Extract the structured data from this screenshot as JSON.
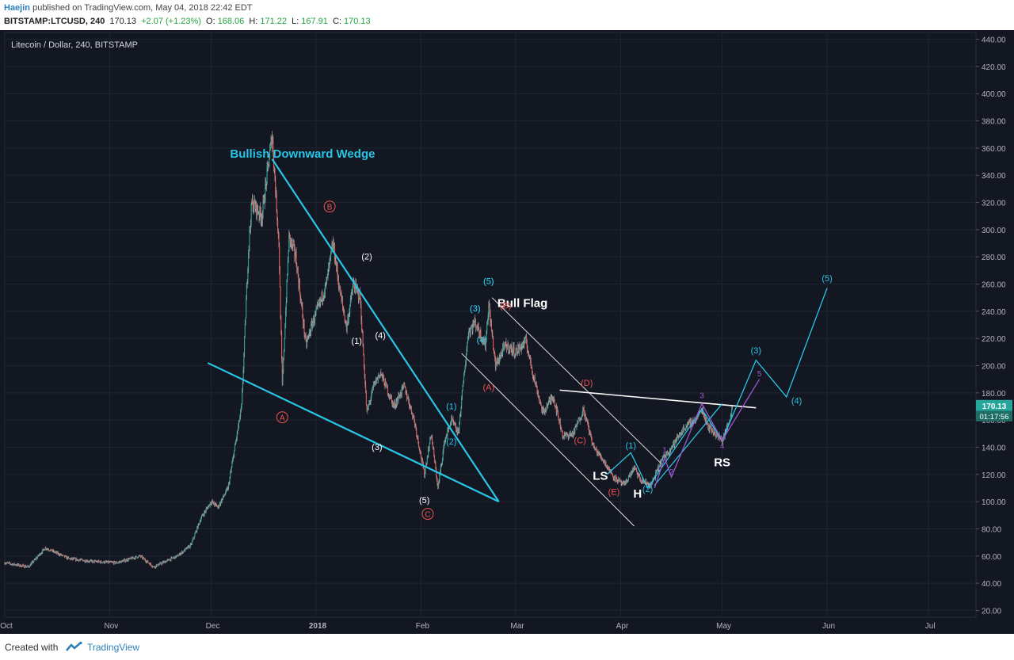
{
  "header": {
    "author": "Haejin",
    "published_text": "published on TradingView.com, May 04, 2018 22:42 EDT",
    "symbol": "BITSTAMP:LTCUSD, 240",
    "last": "170.13",
    "change": "+2.07 (+1.23%)",
    "o_label": "O:",
    "o_value": "168.06",
    "h_label": "H:",
    "h_value": "171.22",
    "l_label": "L:",
    "l_value": "167.91",
    "c_label": "C:",
    "c_value": "170.13"
  },
  "footer": {
    "created_label": "Created with",
    "brand": "TradingView"
  },
  "chart_data": {
    "type": "candlestick",
    "title": "Litecoin / Dollar, 240, BITSTAMP",
    "x_tick_labels": [
      "Oct",
      "Nov",
      "Dec",
      "2018",
      "Feb",
      "Mar",
      "Apr",
      "May",
      "Jun",
      "Jul"
    ],
    "x_tick_dates": [
      "2017-10-01",
      "2017-11-01",
      "2017-12-01",
      "2018-01-01",
      "2018-02-01",
      "2018-03-01",
      "2018-04-01",
      "2018-05-01",
      "2018-06-01",
      "2018-07-01"
    ],
    "xlim": [
      "2017-10-01",
      "2018-07-15"
    ],
    "ylim": [
      15,
      445
    ],
    "y_tick_labels": [
      "20.00",
      "40.00",
      "60.00",
      "80.00",
      "100.00",
      "120.00",
      "140.00",
      "160.00",
      "180.00",
      "200.00",
      "220.00",
      "240.00",
      "260.00",
      "280.00",
      "300.00",
      "320.00",
      "340.00",
      "360.00",
      "380.00",
      "400.00",
      "420.00",
      "440.00"
    ],
    "y_ticks": [
      20,
      40,
      60,
      80,
      100,
      120,
      140,
      160,
      180,
      200,
      220,
      240,
      260,
      280,
      300,
      320,
      340,
      360,
      380,
      400,
      420,
      440
    ],
    "last_price_label": "170.13",
    "last_price": 170.13,
    "countdown_label": "01:17:56",
    "price_path": [
      [
        "2017-10-01",
        55
      ],
      [
        "2017-10-08",
        52
      ],
      [
        "2017-10-13",
        66
      ],
      [
        "2017-10-20",
        58
      ],
      [
        "2017-10-27",
        56
      ],
      [
        "2017-11-03",
        55
      ],
      [
        "2017-11-10",
        60
      ],
      [
        "2017-11-14",
        52
      ],
      [
        "2017-11-21",
        60
      ],
      [
        "2017-11-25",
        68
      ],
      [
        "2017-11-28",
        88
      ],
      [
        "2017-12-01",
        100
      ],
      [
        "2017-12-03",
        96
      ],
      [
        "2017-12-06",
        110
      ],
      [
        "2017-12-08",
        140
      ],
      [
        "2017-12-10",
        170
      ],
      [
        "2017-12-12",
        285
      ],
      [
        "2017-12-13",
        320
      ],
      [
        "2017-12-16",
        310
      ],
      [
        "2017-12-19",
        370
      ],
      [
        "2017-12-21",
        290
      ],
      [
        "2017-12-22",
        185
      ],
      [
        "2017-12-24",
        295
      ],
      [
        "2017-12-26",
        280
      ],
      [
        "2017-12-29",
        215
      ],
      [
        "2017-12-31",
        232
      ],
      [
        "2018-01-02",
        245
      ],
      [
        "2018-01-04",
        260
      ],
      [
        "2018-01-06",
        290
      ],
      [
        "2018-01-08",
        255
      ],
      [
        "2018-01-10",
        228
      ],
      [
        "2018-01-12",
        260
      ],
      [
        "2018-01-14",
        250
      ],
      [
        "2018-01-16",
        165
      ],
      [
        "2018-01-18",
        185
      ],
      [
        "2018-01-20",
        195
      ],
      [
        "2018-01-24",
        170
      ],
      [
        "2018-01-27",
        185
      ],
      [
        "2018-01-30",
        160
      ],
      [
        "2018-02-02",
        120
      ],
      [
        "2018-02-04",
        150
      ],
      [
        "2018-02-06",
        110
      ],
      [
        "2018-02-08",
        145
      ],
      [
        "2018-02-10",
        160
      ],
      [
        "2018-02-12",
        150
      ],
      [
        "2018-02-14",
        200
      ],
      [
        "2018-02-15",
        225
      ],
      [
        "2018-02-17",
        232
      ],
      [
        "2018-02-20",
        215
      ],
      [
        "2018-02-21",
        245
      ],
      [
        "2018-02-23",
        200
      ],
      [
        "2018-02-26",
        215
      ],
      [
        "2018-03-01",
        210
      ],
      [
        "2018-03-04",
        218
      ],
      [
        "2018-03-06",
        195
      ],
      [
        "2018-03-09",
        165
      ],
      [
        "2018-03-12",
        178
      ],
      [
        "2018-03-15",
        148
      ],
      [
        "2018-03-18",
        150
      ],
      [
        "2018-03-21",
        168
      ],
      [
        "2018-03-24",
        140
      ],
      [
        "2018-03-27",
        130
      ],
      [
        "2018-03-30",
        118
      ],
      [
        "2018-04-02",
        112
      ],
      [
        "2018-04-05",
        125
      ],
      [
        "2018-04-07",
        115
      ],
      [
        "2018-04-10",
        112
      ],
      [
        "2018-04-13",
        130
      ],
      [
        "2018-04-16",
        140
      ],
      [
        "2018-04-20",
        155
      ],
      [
        "2018-04-23",
        160
      ],
      [
        "2018-04-25",
        168
      ],
      [
        "2018-04-27",
        155
      ],
      [
        "2018-04-29",
        150
      ],
      [
        "2018-05-01",
        145
      ],
      [
        "2018-05-03",
        158
      ],
      [
        "2018-05-04",
        170
      ]
    ],
    "annotations": {
      "titles": [
        "Bullish Downward Wedge",
        "Bull Flag"
      ],
      "pattern_labels": [
        "LS",
        "H",
        "RS"
      ],
      "white_labels": [
        "(1)",
        "(2)",
        "(3)",
        "(4)",
        "(5)",
        "(3)",
        "(4)",
        "(5)"
      ],
      "red_labels": [
        "A",
        "B",
        "C",
        "(A)",
        "(B)",
        "(C)",
        "(D)",
        "(E)"
      ],
      "cyan_labels": [
        "(1)",
        "(2)",
        "(3)",
        "(4)",
        "(5)",
        "(1)",
        "(2)",
        "(3)",
        "(4)",
        "(5)",
        "(1)",
        "(2)",
        "(3)",
        "(4)",
        "(5)"
      ],
      "purple_labels": [
        "1",
        "2",
        "3",
        "4",
        "5"
      ]
    }
  }
}
